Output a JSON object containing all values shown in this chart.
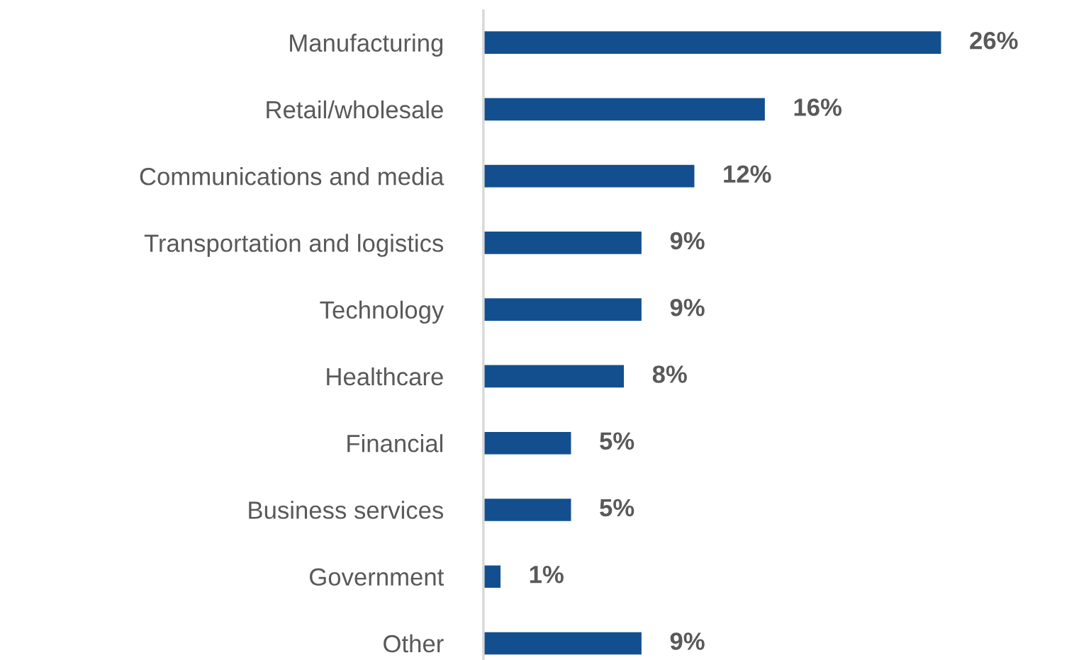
{
  "chart_data": {
    "type": "bar",
    "orientation": "horizontal",
    "categories": [
      "Manufacturing",
      "Retail/wholesale",
      "Communications and media",
      "Transportation and logistics",
      "Technology",
      "Healthcare",
      "Financial",
      "Business services",
      "Government",
      "Other"
    ],
    "values": [
      26,
      16,
      12,
      9,
      9,
      8,
      5,
      5,
      1,
      9
    ],
    "value_labels": [
      "26%",
      "16%",
      "12%",
      "9%",
      "9%",
      "8%",
      "5%",
      "5%",
      "1%",
      "9%"
    ],
    "color": "#134f8f",
    "grid": false,
    "legend": false
  }
}
